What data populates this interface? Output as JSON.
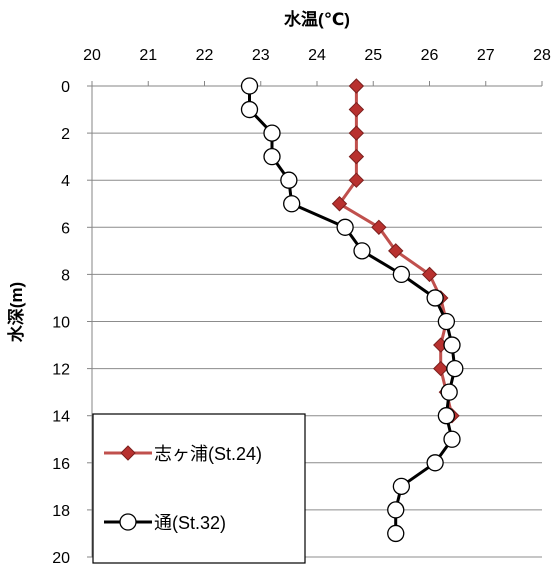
{
  "chart_data": {
    "type": "line",
    "title": "",
    "xlabel": "水温(℃)",
    "ylabel": "水深(m)",
    "xlim": [
      20,
      28
    ],
    "ylim": [
      0,
      20
    ],
    "x_ticks": [
      "20",
      "21",
      "22",
      "23",
      "24",
      "25",
      "26",
      "27",
      "28"
    ],
    "y_ticks": [
      "0",
      "2",
      "4",
      "6",
      "8",
      "10",
      "12",
      "14",
      "16",
      "18",
      "20"
    ],
    "y_inverted": true,
    "x_axis_position": "top",
    "grid": "horizontal",
    "legend_position": "bottom-left",
    "series": [
      {
        "name": "志ヶ浦(St.24)",
        "color": "#c0504d",
        "marker_color": "#b8312f",
        "marker": "diamond",
        "points": [
          {
            "depth": 0,
            "temp": 24.7
          },
          {
            "depth": 1,
            "temp": 24.7
          },
          {
            "depth": 2,
            "temp": 24.7
          },
          {
            "depth": 3,
            "temp": 24.7
          },
          {
            "depth": 4,
            "temp": 24.7
          },
          {
            "depth": 5,
            "temp": 24.4
          },
          {
            "depth": 6,
            "temp": 25.1
          },
          {
            "depth": 7,
            "temp": 25.4
          },
          {
            "depth": 8,
            "temp": 26.0
          },
          {
            "depth": 9,
            "temp": 26.2
          },
          {
            "depth": 10,
            "temp": 26.3
          },
          {
            "depth": 11,
            "temp": 26.2
          },
          {
            "depth": 12,
            "temp": 26.2
          },
          {
            "depth": 13,
            "temp": 26.3
          },
          {
            "depth": 14,
            "temp": 26.4
          }
        ]
      },
      {
        "name": "通(St.32)",
        "color": "#000000",
        "marker_color": "#ffffff",
        "marker": "circle",
        "points": [
          {
            "depth": 0,
            "temp": 22.8
          },
          {
            "depth": 1,
            "temp": 22.8
          },
          {
            "depth": 2,
            "temp": 23.2
          },
          {
            "depth": 3,
            "temp": 23.2
          },
          {
            "depth": 4,
            "temp": 23.5
          },
          {
            "depth": 5,
            "temp": 23.55
          },
          {
            "depth": 6,
            "temp": 24.5
          },
          {
            "depth": 7,
            "temp": 24.8
          },
          {
            "depth": 8,
            "temp": 25.5
          },
          {
            "depth": 9,
            "temp": 26.1
          },
          {
            "depth": 10,
            "temp": 26.3
          },
          {
            "depth": 11,
            "temp": 26.4
          },
          {
            "depth": 12,
            "temp": 26.45
          },
          {
            "depth": 13,
            "temp": 26.35
          },
          {
            "depth": 14,
            "temp": 26.3
          },
          {
            "depth": 15,
            "temp": 26.4
          },
          {
            "depth": 16,
            "temp": 26.1
          },
          {
            "depth": 17,
            "temp": 25.5
          },
          {
            "depth": 18,
            "temp": 25.4
          },
          {
            "depth": 19,
            "temp": 25.4
          }
        ]
      }
    ]
  }
}
